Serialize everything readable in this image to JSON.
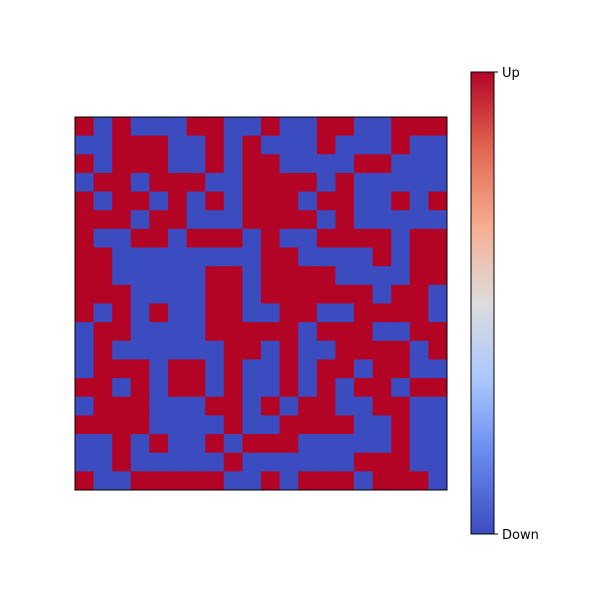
{
  "chart_data": {
    "type": "heatmap",
    "title": "",
    "xlabel": "",
    "ylabel": "",
    "n_rows": 20,
    "n_cols": 20,
    "grid": false,
    "axes_ticks_visible": false,
    "colormap": "coolwarm",
    "value_colors": {
      "0": "#3b4cc0",
      "1": "#b40426"
    },
    "colorbar": {
      "position": "right",
      "min_label": "Down",
      "max_label": "Up",
      "stops": [
        "#3b4cc0",
        "#6688ee",
        "#aac7fd",
        "#dddddd",
        "#f7ad90",
        "#e16751",
        "#b40426"
      ]
    },
    "values": [
      "10100011001001100111",
      "00111001010001000100",
      "10111001011000011000",
      "01101110011110100000",
      "10110101011101100101",
      "11101100011110100000",
      "10011011101001111011",
      "11000000001100001011",
      "11000001101111000011",
      "11100001101111110110",
      "10101001100110011110",
      "01100001111101110011",
      "01000000110100111101",
      "01110110100101101100",
      "11010110100101011011",
      "01110001101011001100",
      "11110000100111100100",
      "00101001011100000100",
      "00100000100000011100",
      "10011111001011101110"
    ]
  }
}
